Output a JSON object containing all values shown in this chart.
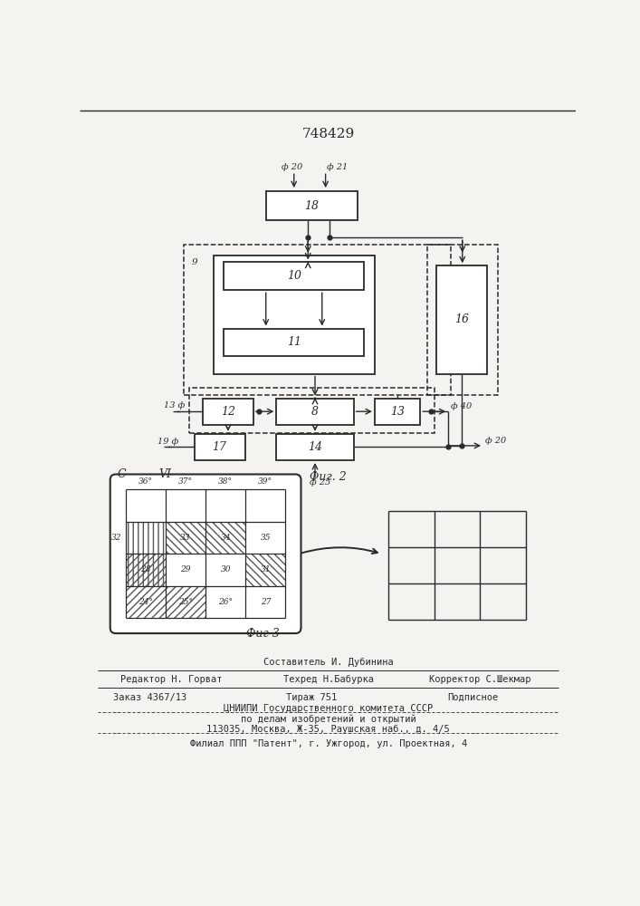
{
  "title": "748429",
  "bg_color": "#f5f3ef",
  "fig2_label": "Фиг. 2",
  "fig3_label": "Фиг 3",
  "footer_line0": "Составитель И. Дубинина",
  "footer_line1a": "Редактор Н. Горват",
  "footer_line1b": "Техред Н.Бабурка",
  "footer_line1c": "Корректор С.Шекмар",
  "footer_line2a": "Заказ 4367/13",
  "footer_line2b": "Тираж 751",
  "footer_line2c": "Подписное",
  "footer_line3": "ЦНИИПИ Государственного комитета СССР",
  "footer_line4": "по делам изобретений и открытий",
  "footer_line5": "113035, Москва, Ж-35, Раушская наб., д. 4/5",
  "footer_line6": "Филиал ППП \"Патент\", г. Ужгород, ул. Проектная, 4"
}
